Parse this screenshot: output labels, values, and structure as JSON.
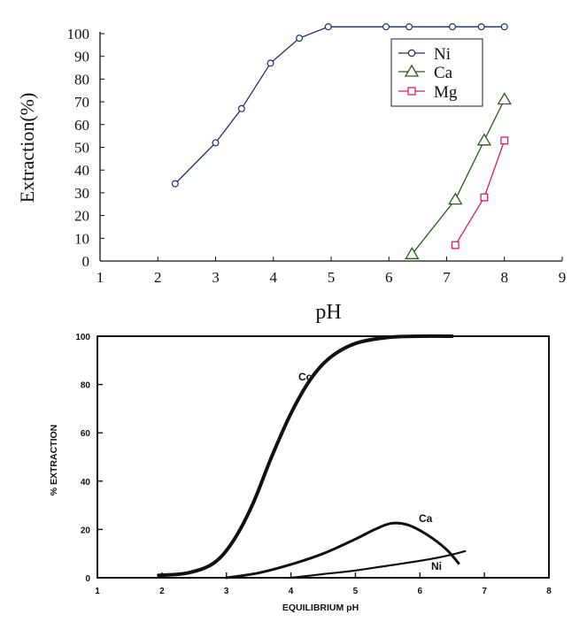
{
  "chart_data": [
    {
      "type": "line",
      "xlabel": "pH",
      "ylabel": "Extraction(%)",
      "xlim": [
        1,
        9
      ],
      "ylim": [
        0,
        100
      ],
      "xticks": [
        "1",
        "2",
        "3",
        "4",
        "5",
        "6",
        "7",
        "8",
        "9"
      ],
      "yticks": [
        "0",
        "10",
        "20",
        "30",
        "40",
        "50",
        "60",
        "70",
        "80",
        "90",
        "100"
      ],
      "grid": false,
      "legend_position": "top-right",
      "series": [
        {
          "name": "Ni",
          "marker": "circle",
          "color": "#1f2d6e",
          "x": [
            2.3,
            3.0,
            3.45,
            3.95,
            4.45,
            4.95,
            5.95,
            6.35,
            7.1,
            7.6,
            8.0
          ],
          "y": [
            34,
            52,
            67,
            87,
            98,
            103,
            103,
            103,
            103,
            103,
            103
          ]
        },
        {
          "name": "Ca",
          "marker": "triangle",
          "color": "#2d5a1e",
          "x": [
            6.4,
            7.15,
            7.65,
            8.0
          ],
          "y": [
            3,
            27,
            53,
            71
          ]
        },
        {
          "name": "Mg",
          "marker": "square",
          "color": "#d81e5b",
          "x": [
            7.15,
            7.65,
            8.0
          ],
          "y": [
            7,
            28,
            53
          ]
        }
      ]
    },
    {
      "type": "line",
      "xlabel": "EQUILIBRIUM pH",
      "ylabel": "% EXTRACTION",
      "xlim": [
        1,
        8
      ],
      "ylim": [
        0,
        100
      ],
      "xticks": [
        "1",
        "2",
        "3",
        "4",
        "5",
        "6",
        "7",
        "8"
      ],
      "yticks": [
        "0",
        "20",
        "40",
        "60",
        "80",
        "100"
      ],
      "grid": false,
      "series": [
        {
          "name": "Co",
          "color": "#111111",
          "x": [
            1.95,
            2.4,
            2.8,
            3.1,
            3.4,
            3.7,
            4.0,
            4.3,
            4.6,
            5.0,
            5.5,
            6.0,
            6.5
          ],
          "y": [
            1,
            2,
            6,
            15,
            30,
            50,
            68,
            82,
            91,
            97,
            99.5,
            100,
            100
          ]
        },
        {
          "name": "Ca",
          "color": "#111111",
          "x": [
            3.0,
            3.5,
            4.0,
            4.5,
            5.0,
            5.3,
            5.55,
            5.8,
            6.1,
            6.4,
            6.6
          ],
          "y": [
            0,
            2,
            5.5,
            10,
            16,
            20,
            22.5,
            22,
            18,
            12,
            6
          ]
        },
        {
          "name": "Ni",
          "color": "#111111",
          "x": [
            4.0,
            4.5,
            5.0,
            5.5,
            6.0,
            6.4,
            6.7
          ],
          "y": [
            0,
            1.5,
            3,
            5,
            7,
            9,
            11
          ]
        }
      ]
    }
  ]
}
